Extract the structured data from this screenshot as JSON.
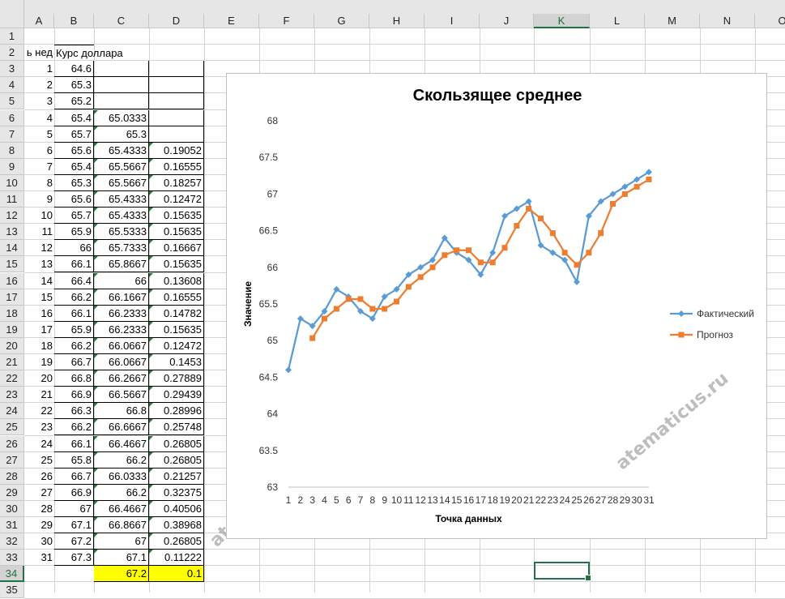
{
  "sheet": {
    "columns": [
      "A",
      "B",
      "C",
      "D",
      "E",
      "F",
      "G",
      "H",
      "I",
      "J",
      "K",
      "L",
      "M",
      "N",
      "O"
    ],
    "selected_column": "K",
    "selected_row": 34,
    "row_numbers": [
      1,
      2,
      3,
      4,
      5,
      6,
      7,
      8,
      9,
      10,
      11,
      12,
      13,
      14,
      15,
      16,
      17,
      18,
      19,
      20,
      21,
      22,
      23,
      24,
      25,
      26,
      27,
      28,
      29,
      30,
      31,
      32,
      33,
      34,
      35
    ],
    "header_a2": "ь нед",
    "header_b2": "Курс доллара",
    "table_rows": [
      {
        "a": "1",
        "b": "64.6",
        "c": "",
        "d": ""
      },
      {
        "a": "2",
        "b": "65.3",
        "c": "",
        "d": ""
      },
      {
        "a": "3",
        "b": "65.2",
        "c": "",
        "d": ""
      },
      {
        "a": "4",
        "b": "65.4",
        "c": "65.0333",
        "d": ""
      },
      {
        "a": "5",
        "b": "65.7",
        "c": "65.3",
        "d": ""
      },
      {
        "a": "6",
        "b": "65.6",
        "c": "65.4333",
        "d": "0.19052"
      },
      {
        "a": "7",
        "b": "65.4",
        "c": "65.5667",
        "d": "0.16555"
      },
      {
        "a": "8",
        "b": "65.3",
        "c": "65.5667",
        "d": "0.18257"
      },
      {
        "a": "9",
        "b": "65.6",
        "c": "65.4333",
        "d": "0.12472"
      },
      {
        "a": "10",
        "b": "65.7",
        "c": "65.4333",
        "d": "0.15635"
      },
      {
        "a": "11",
        "b": "65.9",
        "c": "65.5333",
        "d": "0.15635"
      },
      {
        "a": "12",
        "b": "66",
        "c": "65.7333",
        "d": "0.16667"
      },
      {
        "a": "13",
        "b": "66.1",
        "c": "65.8667",
        "d": "0.15635"
      },
      {
        "a": "14",
        "b": "66.4",
        "c": "66",
        "d": "0.13608"
      },
      {
        "a": "15",
        "b": "66.2",
        "c": "66.1667",
        "d": "0.16555"
      },
      {
        "a": "16",
        "b": "66.1",
        "c": "66.2333",
        "d": "0.14782"
      },
      {
        "a": "17",
        "b": "65.9",
        "c": "66.2333",
        "d": "0.15635"
      },
      {
        "a": "18",
        "b": "66.2",
        "c": "66.0667",
        "d": "0.12472"
      },
      {
        "a": "19",
        "b": "66.7",
        "c": "66.0667",
        "d": "0.1453"
      },
      {
        "a": "20",
        "b": "66.8",
        "c": "66.2667",
        "d": "0.27889"
      },
      {
        "a": "21",
        "b": "66.9",
        "c": "66.5667",
        "d": "0.29439"
      },
      {
        "a": "22",
        "b": "66.3",
        "c": "66.8",
        "d": "0.28996"
      },
      {
        "a": "23",
        "b": "66.2",
        "c": "66.6667",
        "d": "0.25748"
      },
      {
        "a": "24",
        "b": "66.1",
        "c": "66.4667",
        "d": "0.26805"
      },
      {
        "a": "25",
        "b": "65.8",
        "c": "66.2",
        "d": "0.26805"
      },
      {
        "a": "26",
        "b": "66.7",
        "c": "66.0333",
        "d": "0.21257"
      },
      {
        "a": "27",
        "b": "66.9",
        "c": "66.2",
        "d": "0.32375"
      },
      {
        "a": "28",
        "b": "67",
        "c": "66.4667",
        "d": "0.40506"
      },
      {
        "a": "29",
        "b": "67.1",
        "c": "66.8667",
        "d": "0.38968"
      },
      {
        "a": "30",
        "b": "67.2",
        "c": "67",
        "d": "0.26805"
      },
      {
        "a": "31",
        "b": "67.3",
        "c": "67.1",
        "d": "0.11222"
      }
    ],
    "row34": {
      "c": "67.2",
      "d": "0.1"
    },
    "highlight_color": "#ffff00"
  },
  "watermark": "atematicus.ru",
  "chart_data": {
    "type": "line",
    "title": "Скользящее среднее",
    "xlabel": "Точка данных",
    "ylabel": "Значение",
    "ylim": [
      63,
      68
    ],
    "yticks": [
      "63",
      "63.5",
      "64",
      "64.5",
      "65",
      "65.5",
      "66",
      "66.5",
      "67",
      "67.5",
      "68"
    ],
    "categories": [
      "1",
      "2",
      "3",
      "4",
      "5",
      "6",
      "7",
      "8",
      "9",
      "10",
      "11",
      "12",
      "13",
      "14",
      "15",
      "16",
      "17",
      "18",
      "19",
      "20",
      "21",
      "22",
      "23",
      "24",
      "25",
      "26",
      "27",
      "28",
      "29",
      "30",
      "31"
    ],
    "grid": false,
    "legend_position": "right",
    "series": [
      {
        "name": "Фактический",
        "color": "#5b9bd5",
        "marker": "diamond",
        "values": [
          64.6,
          65.3,
          65.2,
          65.4,
          65.7,
          65.6,
          65.4,
          65.3,
          65.6,
          65.7,
          65.9,
          66,
          66.1,
          66.4,
          66.2,
          66.1,
          65.9,
          66.2,
          66.7,
          66.8,
          66.9,
          66.3,
          66.2,
          66.1,
          65.8,
          66.7,
          66.9,
          67,
          67.1,
          67.2,
          67.3
        ]
      },
      {
        "name": "Прогноз",
        "color": "#ed7d31",
        "marker": "square",
        "values": [
          null,
          null,
          65.0333,
          65.3,
          65.4333,
          65.5667,
          65.5667,
          65.4333,
          65.4333,
          65.5333,
          65.7333,
          65.8667,
          66,
          66.1667,
          66.2333,
          66.2333,
          66.0667,
          66.0667,
          66.2667,
          66.5667,
          66.8,
          66.6667,
          66.4667,
          66.2,
          66.0333,
          66.2,
          66.4667,
          66.8667,
          67,
          67.1,
          67.2
        ]
      }
    ]
  }
}
